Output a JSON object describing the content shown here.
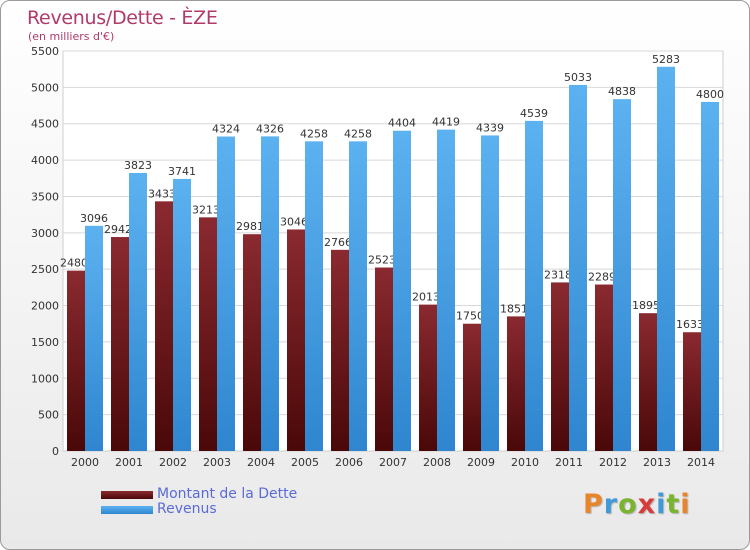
{
  "title": "Revenus/Dette - ÈZE",
  "subtitle": "(en milliers d'€)",
  "colors": {
    "dette": "#7a1f24",
    "revenus": "#4aa3e8",
    "title": "#b03a6a"
  },
  "logo": {
    "letters": [
      {
        "ch": "P",
        "color": "#e8842a"
      },
      {
        "ch": "r",
        "color": "#3e9ad8"
      },
      {
        "ch": "o",
        "color": "#7ab42f"
      },
      {
        "ch": "x",
        "color": "#d93a3a"
      },
      {
        "ch": "i",
        "color": "#3e9ad8"
      },
      {
        "ch": "t",
        "color": "#7ab42f"
      },
      {
        "ch": "i",
        "color": "#e8842a"
      }
    ]
  },
  "chart_data": {
    "type": "bar",
    "categories": [
      "2000",
      "2001",
      "2002",
      "2003",
      "2004",
      "2005",
      "2006",
      "2007",
      "2008",
      "2009",
      "2010",
      "2011",
      "2012",
      "2013",
      "2014"
    ],
    "series": [
      {
        "name": "Montant de la Dette",
        "values": [
          2480,
          2942,
          3433,
          3213,
          2981,
          3046,
          2766,
          2523,
          2013,
          1750,
          1851,
          2318,
          2289,
          1895,
          1633
        ],
        "labels": [
          "2480",
          "2942",
          "3433",
          "3213",
          "2981",
          "3046",
          "2766",
          "2523",
          "2013",
          "1750",
          "1851",
          "2318",
          "2289",
          "1895",
          "1633"
        ]
      },
      {
        "name": "Revenus",
        "values": [
          3096,
          3823,
          3741,
          4324,
          4326,
          4258,
          4258,
          4404,
          4419,
          4339,
          4539,
          5033,
          4838,
          5283,
          4800
        ],
        "labels": [
          "3096",
          "3823",
          "3741",
          "4324",
          "4326",
          "4258",
          "4258",
          "4404",
          "4419",
          "4339",
          "4539",
          "5033",
          "4838",
          "5283",
          "4800"
        ]
      }
    ],
    "y_ticks": [
      "0",
      "500",
      "1000",
      "1500",
      "2000",
      "2500",
      "3000",
      "3500",
      "4000",
      "4500",
      "5000",
      "5500"
    ],
    "ylim": [
      0,
      5500
    ],
    "grid": true,
    "legend_position": "bottom-left"
  }
}
